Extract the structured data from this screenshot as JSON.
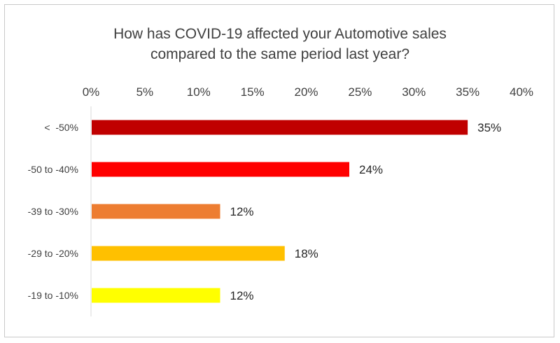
{
  "chart_data": {
    "type": "bar",
    "orientation": "horizontal",
    "title_lines": [
      "How has COVID-19 affected your Automotive sales",
      "compared to the same period last year?"
    ],
    "xlabel": "",
    "ylabel": "",
    "x_ticks": [
      "0%",
      "5%",
      "10%",
      "15%",
      "20%",
      "25%",
      "30%",
      "35%",
      "40%"
    ],
    "xlim": [
      0,
      40
    ],
    "x_axis_position": "top",
    "grid": false,
    "legend": "none",
    "categories": [
      "<  -50%",
      "-50 to -40%",
      "-39 to -30%",
      "-29 to -20%",
      "-19 to -10%"
    ],
    "values": [
      35,
      24,
      12,
      18,
      12
    ],
    "data_labels": [
      "35%",
      "24%",
      "12%",
      "18%",
      "12%"
    ],
    "colors": [
      "#c00000",
      "#ff0000",
      "#ed7d31",
      "#ffc000",
      "#ffff00"
    ]
  }
}
